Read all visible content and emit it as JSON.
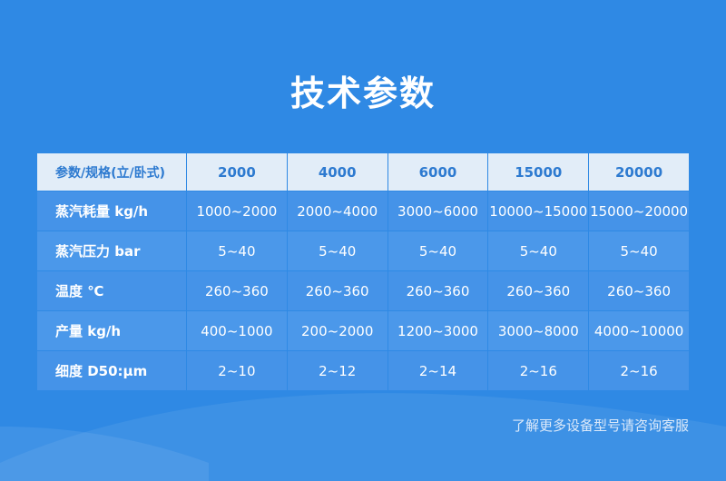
{
  "title": "技术参数",
  "table": {
    "headers": [
      "参数/规格(立/卧式)",
      "2000",
      "4000",
      "6000",
      "15000",
      "20000"
    ],
    "rows": [
      {
        "label": "蒸汽耗量 kg/h",
        "values": [
          "1000~2000",
          "2000~4000",
          "3000~6000",
          "10000~15000",
          "15000~20000"
        ]
      },
      {
        "label": "蒸汽压力 bar",
        "values": [
          "5~40",
          "5~40",
          "5~40",
          "5~40",
          "5~40"
        ]
      },
      {
        "label": "温度 ℃",
        "values": [
          "260~360",
          "260~360",
          "260~360",
          "260~360",
          "260~360"
        ]
      },
      {
        "label": "产量 kg/h",
        "values": [
          "400~1000",
          "200~2000",
          "1200~3000",
          "3000~8000",
          "4000~10000"
        ]
      },
      {
        "label": "细度 D50:μm",
        "values": [
          "2~10",
          "2~12",
          "2~14",
          "2~16",
          "2~16"
        ]
      }
    ]
  },
  "footer_note": "了解更多设备型号请咨询客服",
  "colors": {
    "background": "#2f89e4",
    "header_bg": "#e2edf8",
    "header_text": "#2d7ad0",
    "row_bg": "#4593e8"
  }
}
